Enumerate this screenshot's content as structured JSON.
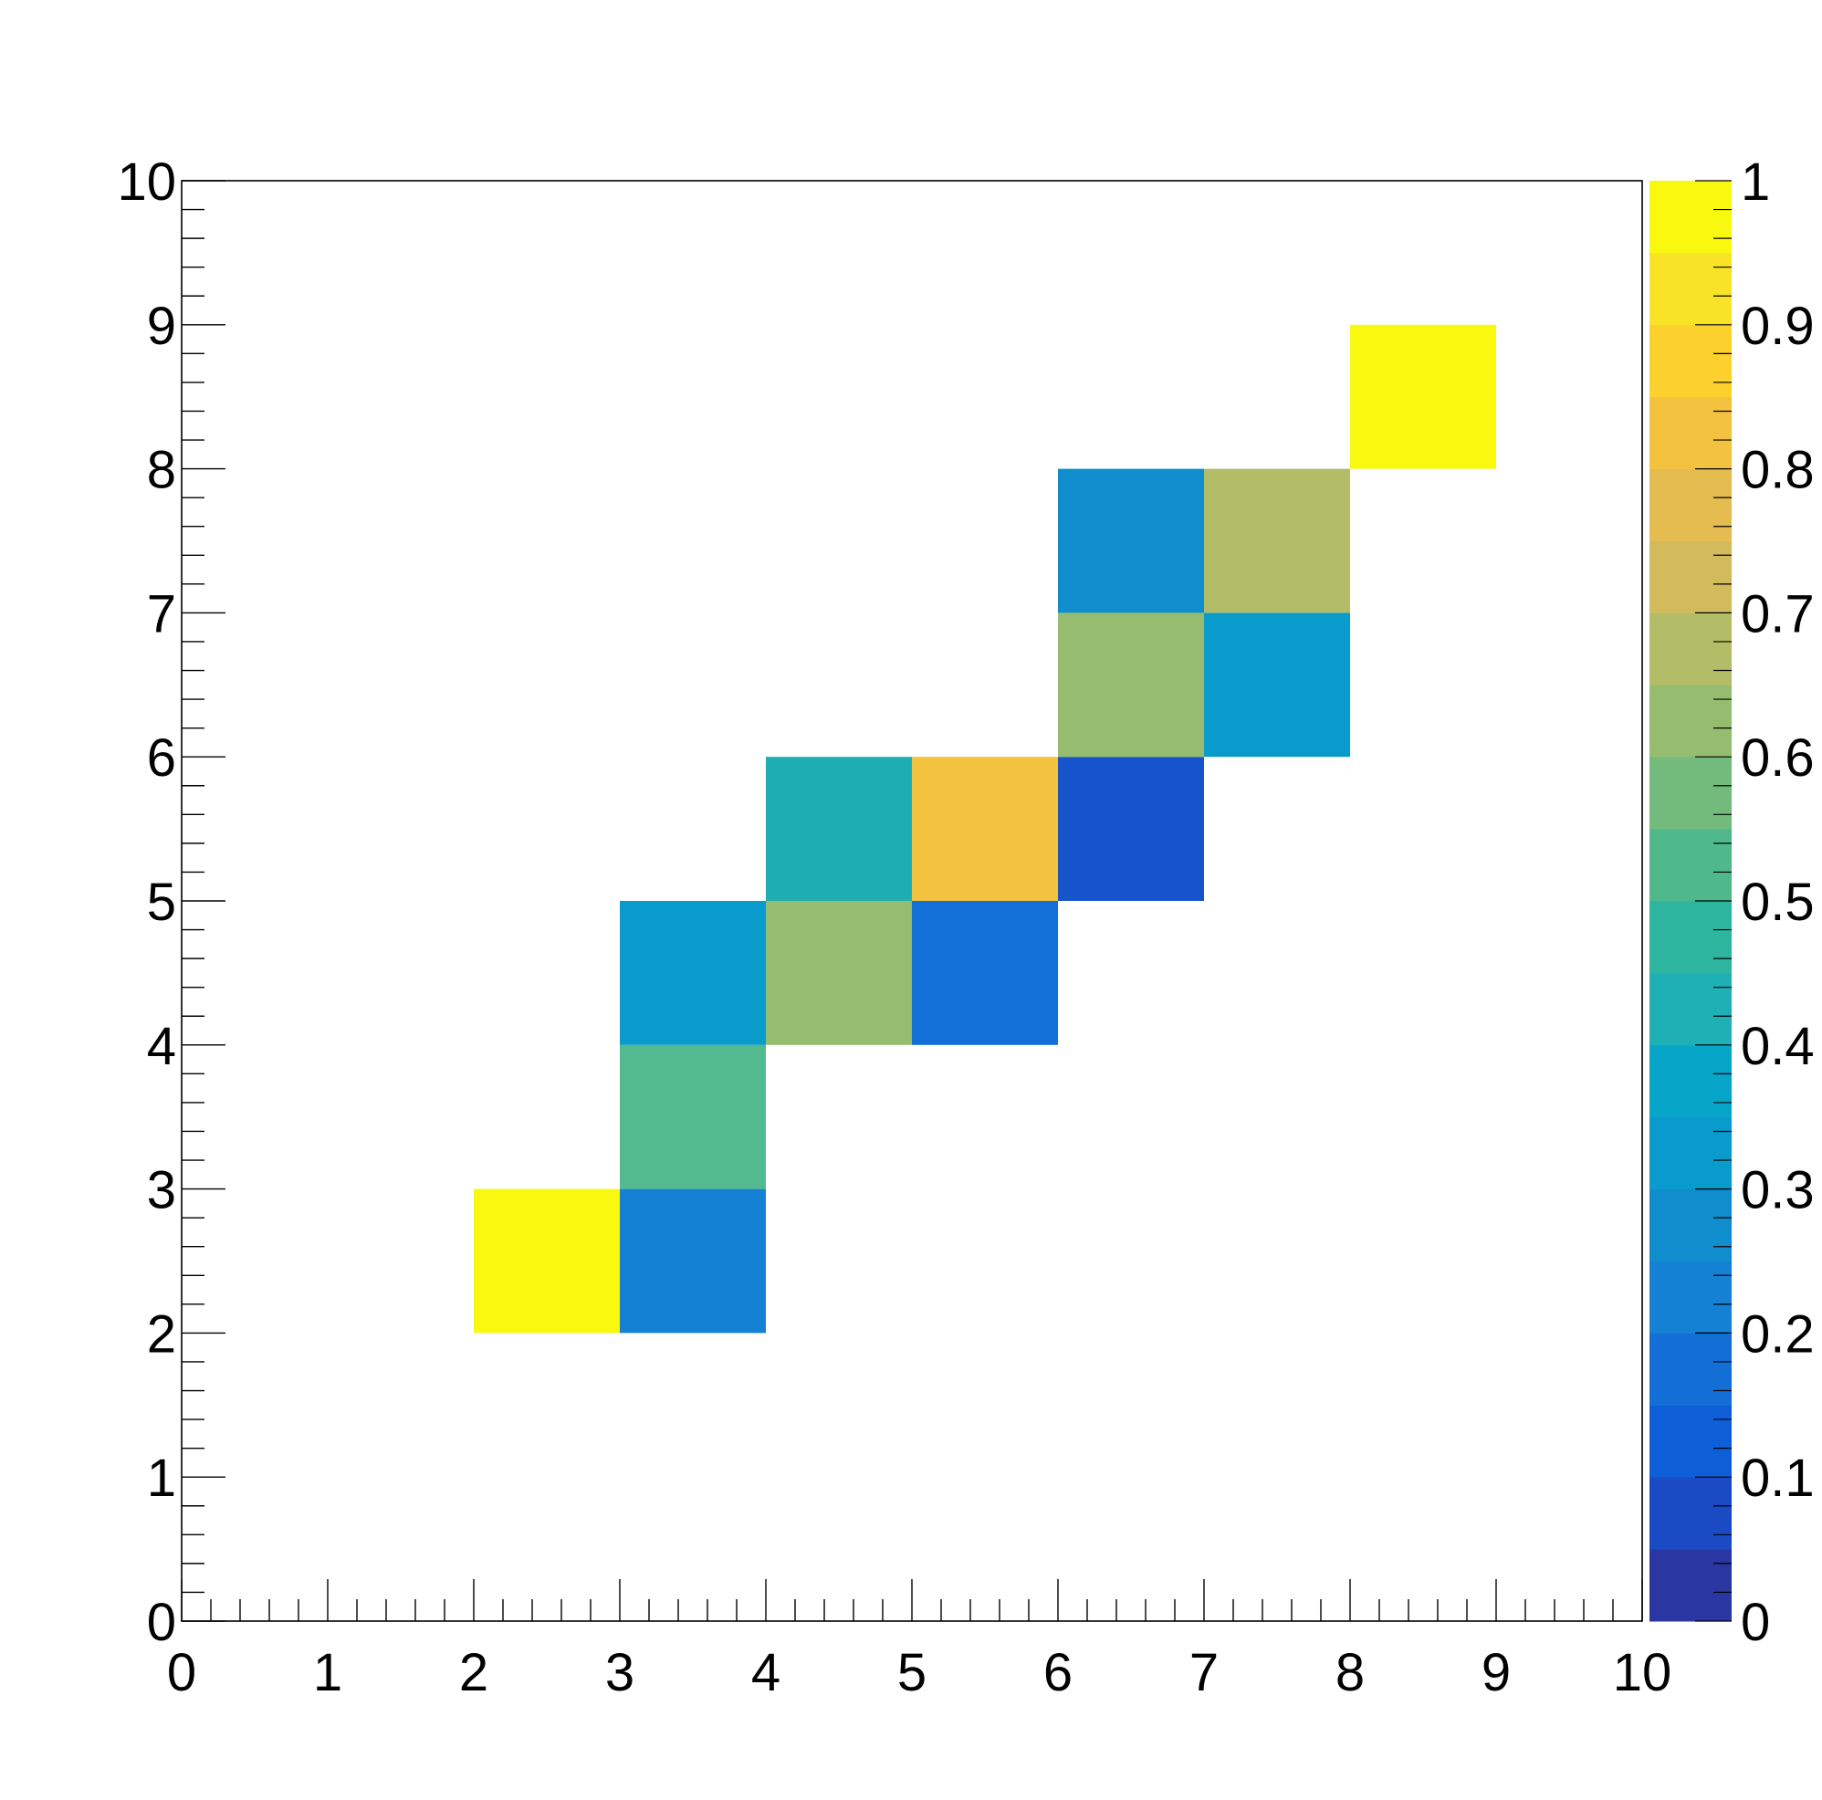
{
  "chart_data": {
    "type": "heatmap",
    "title": "",
    "xlabel": "",
    "ylabel": "",
    "xlim": [
      0,
      10
    ],
    "ylim": [
      0,
      10
    ],
    "zlim": [
      0,
      1
    ],
    "x_ticks": [
      "0",
      "1",
      "2",
      "3",
      "4",
      "5",
      "6",
      "7",
      "8",
      "9",
      "10"
    ],
    "y_ticks": [
      "0",
      "1",
      "2",
      "3",
      "4",
      "5",
      "6",
      "7",
      "8",
      "9",
      "10"
    ],
    "colorbar_ticks": [
      "0",
      "0.1",
      "0.2",
      "0.3",
      "0.4",
      "0.5",
      "0.6",
      "0.7",
      "0.8",
      "0.9",
      "1"
    ],
    "colormap": [
      "#2a36a2",
      "#1a4ac4",
      "#0e5ed8",
      "#136fd6",
      "#1481d4",
      "#0f8dcc",
      "#099bcc",
      "#07a6c8",
      "#1eb0b4",
      "#2db5a0",
      "#4fb98c",
      "#72bb7c",
      "#96bc70",
      "#b3bc66",
      "#d2bb5c",
      "#e4bc50",
      "#f3c23e",
      "#fcd12e",
      "#f9e327",
      "#f8f90f"
    ],
    "grid": false,
    "cells": [
      {
        "x": 2,
        "y": 2,
        "value": 1.0,
        "color": "#f8f90f"
      },
      {
        "x": 3,
        "y": 2,
        "value": 0.23,
        "color": "#1481d4"
      },
      {
        "x": 3,
        "y": 3,
        "value": 0.55,
        "color": "#52ba8e"
      },
      {
        "x": 3,
        "y": 4,
        "value": 0.33,
        "color": "#099bcc"
      },
      {
        "x": 4,
        "y": 4,
        "value": 0.64,
        "color": "#96bc70"
      },
      {
        "x": 5,
        "y": 4,
        "value": 0.18,
        "color": "#1370d6"
      },
      {
        "x": 4,
        "y": 5,
        "value": 0.44,
        "color": "#1eadb3"
      },
      {
        "x": 5,
        "y": 5,
        "value": 0.83,
        "color": "#f3c23e"
      },
      {
        "x": 6,
        "y": 5,
        "value": 0.08,
        "color": "#1753cb"
      },
      {
        "x": 6,
        "y": 6,
        "value": 0.64,
        "color": "#96bc70"
      },
      {
        "x": 7,
        "y": 6,
        "value": 0.33,
        "color": "#099bcc"
      },
      {
        "x": 6,
        "y": 7,
        "value": 0.28,
        "color": "#0f8dcc"
      },
      {
        "x": 7,
        "y": 7,
        "value": 0.69,
        "color": "#b3bc66"
      },
      {
        "x": 8,
        "y": 8,
        "value": 1.0,
        "color": "#f8f90f"
      }
    ]
  }
}
